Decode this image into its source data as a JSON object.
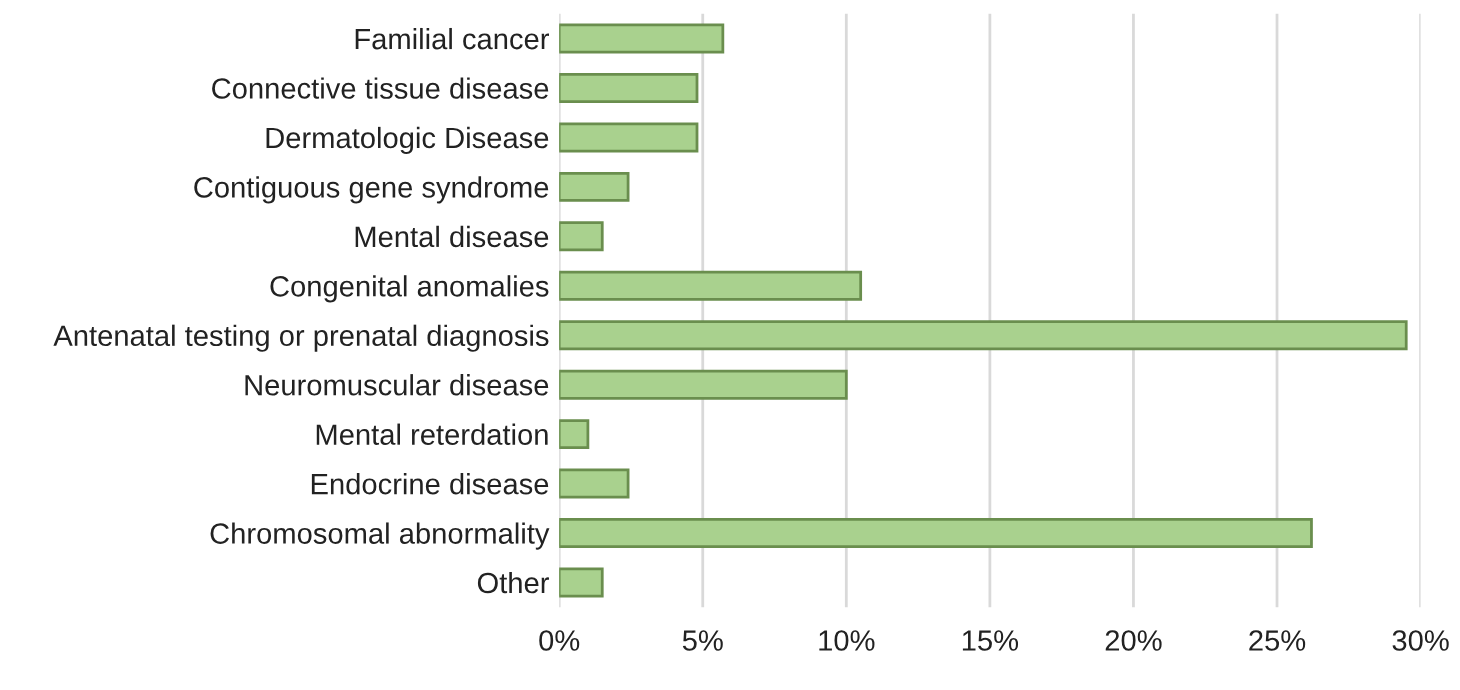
{
  "chart_data": {
    "type": "bar",
    "orientation": "horizontal",
    "categories": [
      "Familial cancer",
      "Connective tissue disease",
      "Dermatologic Disease",
      "Contiguous gene syndrome",
      "Mental disease",
      "Congenital anomalies",
      "Antenatal testing or prenatal diagnosis",
      "Neuromuscular disease",
      "Mental reterdation",
      "Endocrine disease",
      "Chromosomal abnormality",
      "Other"
    ],
    "values": [
      5.7,
      4.8,
      4.8,
      2.4,
      1.5,
      10.5,
      29.5,
      10.0,
      1.0,
      2.4,
      26.2,
      1.5
    ],
    "color": "#a9d18e",
    "xlim": [
      0,
      30
    ],
    "xticks": [
      {
        "value": 0,
        "label": "0%"
      },
      {
        "value": 5,
        "label": "5%"
      },
      {
        "value": 10,
        "label": "10%"
      },
      {
        "value": 15,
        "label": "15%"
      },
      {
        "value": 20,
        "label": "20%"
      },
      {
        "value": 25,
        "label": "25%"
      },
      {
        "value": 30,
        "label": "30%"
      }
    ],
    "grid": "x"
  }
}
